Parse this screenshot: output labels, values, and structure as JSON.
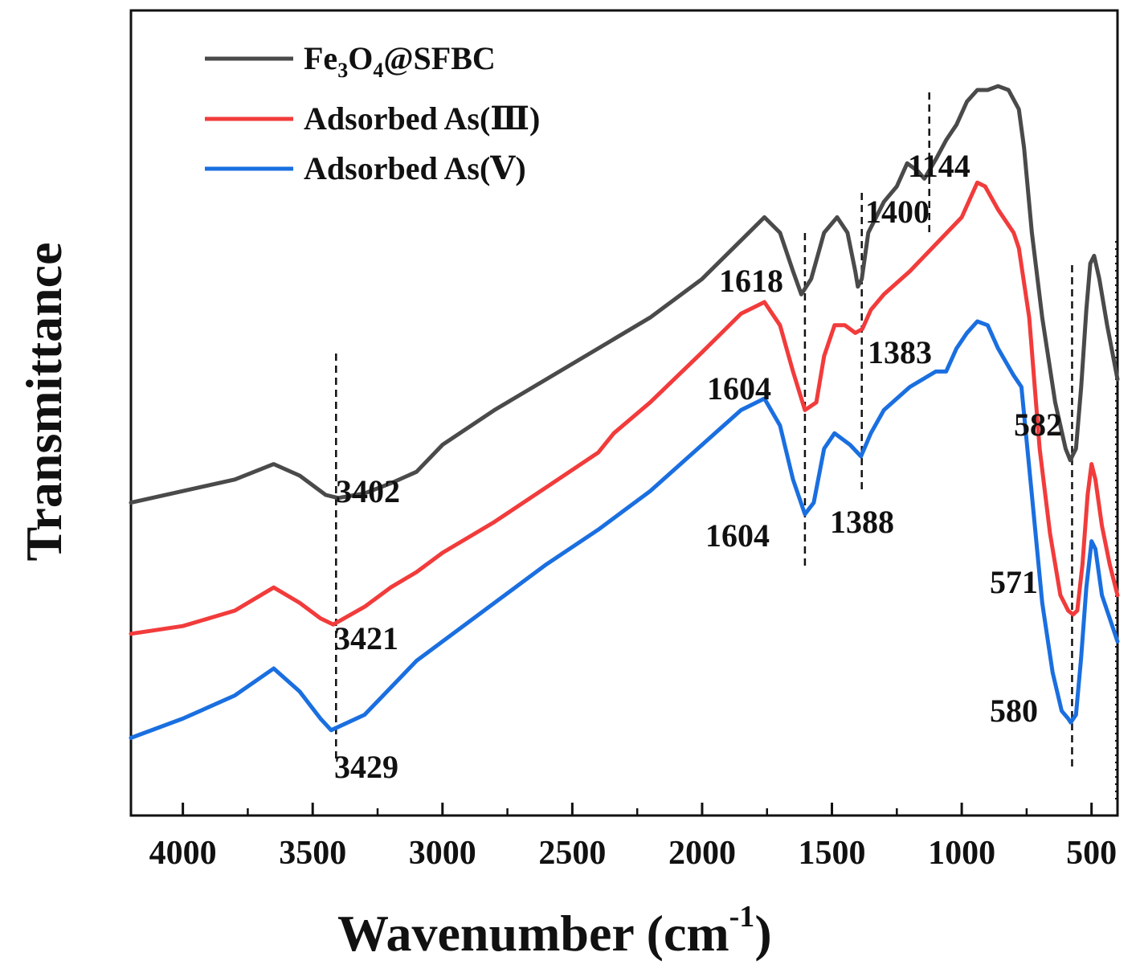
{
  "chart_data": {
    "type": "line",
    "title": "",
    "xlabel": "Wavenumber (cm",
    "xlabel_superscript": "-1",
    "xlabel_close": ")",
    "ylabel": "Transmittance",
    "xlim": [
      4200,
      400
    ],
    "ylim": [
      0,
      100
    ],
    "x_ticks": [
      4000,
      3500,
      3000,
      2500,
      2000,
      1500,
      1000,
      500
    ],
    "x_tick_labels": [
      "4000",
      "3500",
      "3000",
      "2500",
      "2000",
      "1500",
      "1000",
      "500"
    ],
    "y_ticks_shown": false,
    "legend_position": "top-left",
    "series": [
      {
        "name": "Fe3O4@SFBC",
        "legend_parts": {
          "a": "Fe",
          "sub1": "3",
          "b": "O",
          "sub2": "4",
          "c": "@SFBC"
        },
        "color": "#4a4a4a",
        "points": [
          [
            4200,
            39
          ],
          [
            4000,
            40.5
          ],
          [
            3800,
            42
          ],
          [
            3650,
            44
          ],
          [
            3550,
            42.5
          ],
          [
            3450,
            40
          ],
          [
            3402,
            39.6
          ],
          [
            3300,
            40.2
          ],
          [
            3200,
            41.5
          ],
          [
            3100,
            43
          ],
          [
            3000,
            46.5
          ],
          [
            2800,
            51
          ],
          [
            2600,
            55
          ],
          [
            2400,
            59
          ],
          [
            2200,
            63
          ],
          [
            2000,
            68
          ],
          [
            1850,
            73
          ],
          [
            1760,
            76
          ],
          [
            1700,
            74
          ],
          [
            1650,
            69
          ],
          [
            1618,
            66
          ],
          [
            1580,
            68
          ],
          [
            1530,
            74
          ],
          [
            1480,
            76
          ],
          [
            1440,
            74
          ],
          [
            1410,
            69
          ],
          [
            1400,
            67
          ],
          [
            1385,
            68
          ],
          [
            1360,
            74
          ],
          [
            1300,
            78
          ],
          [
            1250,
            80
          ],
          [
            1210,
            83
          ],
          [
            1170,
            82
          ],
          [
            1144,
            81
          ],
          [
            1100,
            83.5
          ],
          [
            1060,
            86
          ],
          [
            1020,
            88
          ],
          [
            980,
            91
          ],
          [
            940,
            92.5
          ],
          [
            900,
            92.5
          ],
          [
            860,
            93
          ],
          [
            820,
            92.5
          ],
          [
            780,
            90
          ],
          [
            760,
            85
          ],
          [
            730,
            74
          ],
          [
            690,
            63
          ],
          [
            640,
            52
          ],
          [
            600,
            46
          ],
          [
            582,
            44.5
          ],
          [
            560,
            46
          ],
          [
            540,
            54
          ],
          [
            520,
            64
          ],
          [
            505,
            70
          ],
          [
            490,
            71
          ],
          [
            470,
            68
          ],
          [
            440,
            62
          ],
          [
            400,
            55
          ]
        ]
      },
      {
        "name": "Adsorbed As(III)",
        "legend_parts": {
          "a": "Adsorbed As(",
          "b": "Ⅲ",
          "c": ")"
        },
        "color": "#f23b3b",
        "points": [
          [
            4200,
            22
          ],
          [
            4000,
            23
          ],
          [
            3800,
            25
          ],
          [
            3650,
            28
          ],
          [
            3550,
            26
          ],
          [
            3470,
            24
          ],
          [
            3421,
            23.2
          ],
          [
            3300,
            25.5
          ],
          [
            3200,
            28
          ],
          [
            3100,
            30
          ],
          [
            3000,
            32.5
          ],
          [
            2800,
            36.5
          ],
          [
            2600,
            41
          ],
          [
            2400,
            45.5
          ],
          [
            2340,
            48
          ],
          [
            2200,
            52
          ],
          [
            2000,
            58.5
          ],
          [
            1850,
            63.5
          ],
          [
            1760,
            65
          ],
          [
            1700,
            62
          ],
          [
            1650,
            56
          ],
          [
            1604,
            51
          ],
          [
            1560,
            52
          ],
          [
            1530,
            58
          ],
          [
            1490,
            62
          ],
          [
            1450,
            62
          ],
          [
            1410,
            61
          ],
          [
            1383,
            61.5
          ],
          [
            1350,
            64
          ],
          [
            1300,
            66
          ],
          [
            1200,
            69
          ],
          [
            1100,
            72.5
          ],
          [
            1000,
            76
          ],
          [
            960,
            79
          ],
          [
            940,
            80.5
          ],
          [
            910,
            80
          ],
          [
            860,
            77
          ],
          [
            800,
            74
          ],
          [
            780,
            72
          ],
          [
            740,
            63
          ],
          [
            700,
            46
          ],
          [
            660,
            35
          ],
          [
            620,
            27
          ],
          [
            590,
            25
          ],
          [
            571,
            24.5
          ],
          [
            555,
            25
          ],
          [
            535,
            31
          ],
          [
            515,
            40
          ],
          [
            500,
            44
          ],
          [
            485,
            42
          ],
          [
            460,
            36
          ],
          [
            430,
            31
          ],
          [
            400,
            27
          ]
        ]
      },
      {
        "name": "Adsorbed As(V)",
        "legend_parts": {
          "a": "Adsorbed As(",
          "b": "Ⅴ",
          "c": ")"
        },
        "color": "#1a6fe0",
        "points": [
          [
            4200,
            8.5
          ],
          [
            4000,
            11
          ],
          [
            3800,
            14
          ],
          [
            3650,
            17.5
          ],
          [
            3550,
            14.5
          ],
          [
            3470,
            11
          ],
          [
            3429,
            9.5
          ],
          [
            3300,
            11.5
          ],
          [
            3200,
            15
          ],
          [
            3100,
            18.5
          ],
          [
            3000,
            21
          ],
          [
            2800,
            26
          ],
          [
            2600,
            31
          ],
          [
            2400,
            35.5
          ],
          [
            2200,
            40.5
          ],
          [
            2000,
            46.5
          ],
          [
            1850,
            51
          ],
          [
            1760,
            52.5
          ],
          [
            1700,
            49
          ],
          [
            1650,
            42
          ],
          [
            1604,
            37.5
          ],
          [
            1570,
            39
          ],
          [
            1530,
            46
          ],
          [
            1490,
            48
          ],
          [
            1430,
            46.5
          ],
          [
            1388,
            45
          ],
          [
            1350,
            48
          ],
          [
            1300,
            51
          ],
          [
            1200,
            54
          ],
          [
            1100,
            56
          ],
          [
            1060,
            56
          ],
          [
            1020,
            59
          ],
          [
            980,
            61
          ],
          [
            940,
            62.5
          ],
          [
            900,
            62
          ],
          [
            860,
            59
          ],
          [
            800,
            55.5
          ],
          [
            770,
            54
          ],
          [
            730,
            40
          ],
          [
            690,
            26
          ],
          [
            650,
            17
          ],
          [
            615,
            12
          ],
          [
            590,
            11
          ],
          [
            580,
            10.5
          ],
          [
            560,
            11.5
          ],
          [
            540,
            19
          ],
          [
            520,
            28
          ],
          [
            500,
            34
          ],
          [
            485,
            33
          ],
          [
            460,
            27
          ],
          [
            430,
            24
          ],
          [
            400,
            21
          ]
        ]
      }
    ],
    "annotations": [
      {
        "label": "3402",
        "x": 3402
      },
      {
        "label": "3421",
        "x": 3421
      },
      {
        "label": "3429",
        "x": 3429
      },
      {
        "label": "1618",
        "x": 1618
      },
      {
        "label": "1604",
        "x": 1604
      },
      {
        "label": "1604",
        "x": 1604
      },
      {
        "label": "1400",
        "x": 1400
      },
      {
        "label": "1383",
        "x": 1383
      },
      {
        "label": "1388",
        "x": 1388
      },
      {
        "label": "1144",
        "x": 1144
      },
      {
        "label": "582",
        "x": 582
      },
      {
        "label": "571",
        "x": 571
      },
      {
        "label": "580",
        "x": 580
      }
    ],
    "reference_lines_x": [
      3410,
      1604,
      1385,
      1125,
      575
    ]
  }
}
